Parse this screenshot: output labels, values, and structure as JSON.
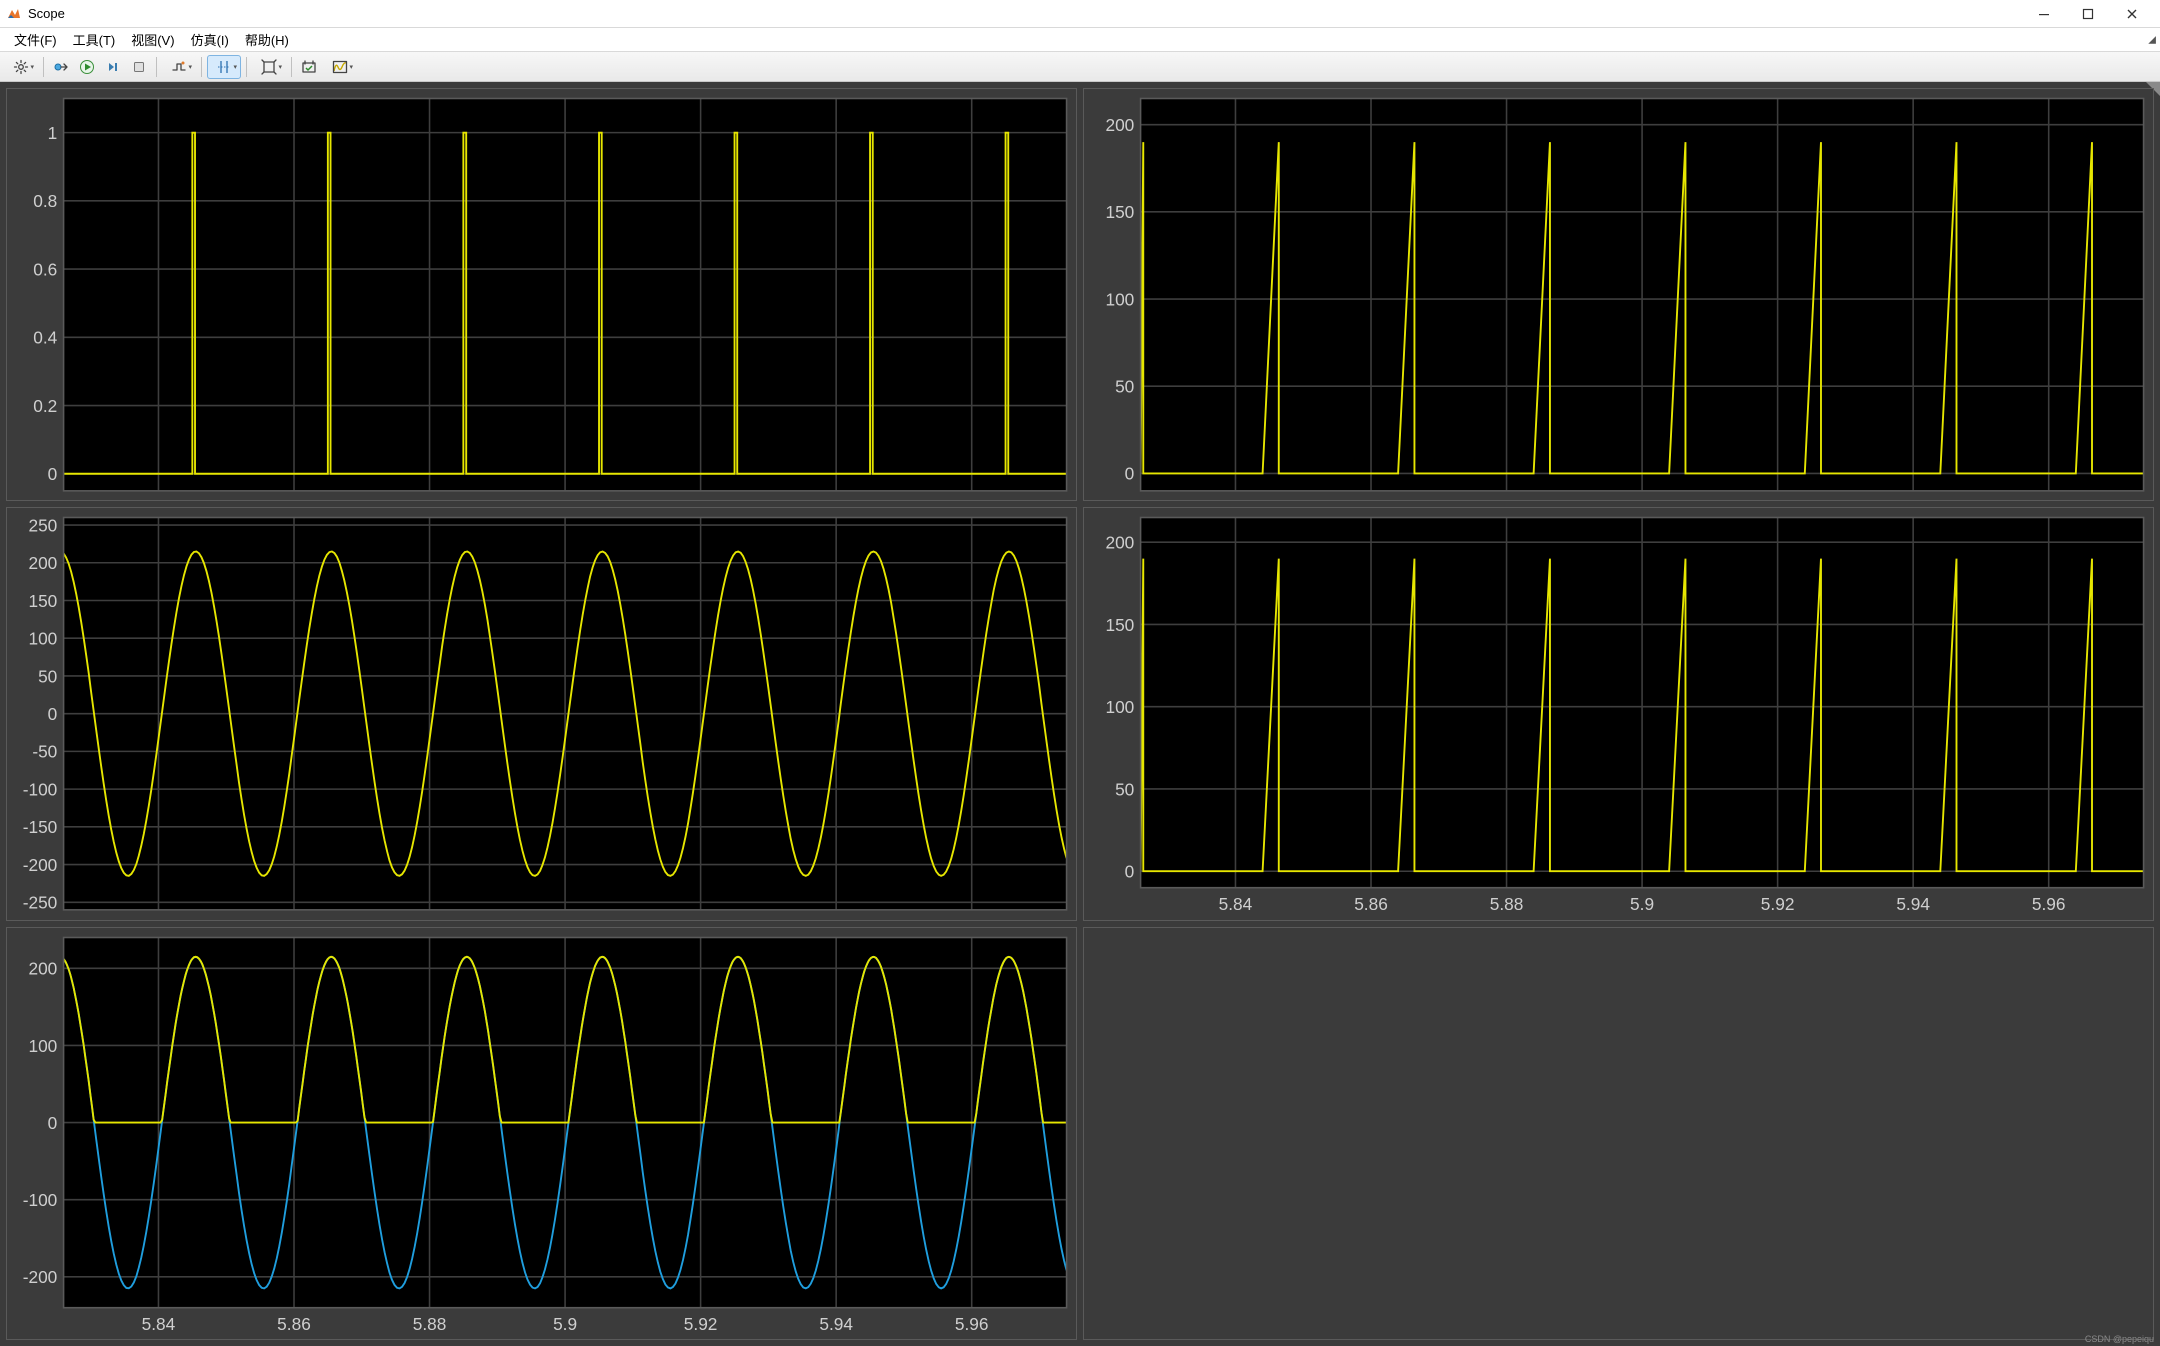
{
  "window": {
    "title": "Scope",
    "icon_name": "matlab-membrane-icon"
  },
  "menus": [
    {
      "label": "文件(F)"
    },
    {
      "label": "工具(T)"
    },
    {
      "label": "视图(V)"
    },
    {
      "label": "仿真(I)"
    },
    {
      "label": "帮助(H)"
    }
  ],
  "toolbar": [
    {
      "name": "configure",
      "title": "Configuration Properties",
      "icon": "gear",
      "dropdown": true
    },
    {
      "sep": true
    },
    {
      "name": "open-model",
      "title": "Highlight Block",
      "icon": "open-doc",
      "dropdown": false
    },
    {
      "name": "run",
      "title": "Run",
      "icon": "play-green",
      "dropdown": false
    },
    {
      "name": "step-forward",
      "title": "Step Forward",
      "icon": "step-fwd",
      "dropdown": false
    },
    {
      "name": "stop",
      "title": "Stop",
      "icon": "stop",
      "dropdown": false
    },
    {
      "sep": true
    },
    {
      "name": "triggers",
      "title": "Triggers",
      "icon": "trigger",
      "dropdown": true
    },
    {
      "sep": true
    },
    {
      "name": "cursor-measure",
      "title": "Cursor Measurements",
      "icon": "cursor",
      "dropdown": true,
      "active": true
    },
    {
      "sep": true
    },
    {
      "name": "zoom-xy",
      "title": "Zoom",
      "icon": "autoscale",
      "dropdown": true
    },
    {
      "sep": true
    },
    {
      "name": "time-settings",
      "title": "Time Settings",
      "icon": "time-set",
      "dropdown": false
    },
    {
      "name": "signals-view",
      "title": "View Signals",
      "icon": "signals",
      "dropdown": true
    }
  ],
  "axes_common": {
    "background_color": "#000000",
    "grid_color": "#3e3e3e",
    "tick_color": "#cfcfcf",
    "tick_fontsize": 11,
    "x": {
      "lim": [
        5.826,
        5.974
      ],
      "ticks": [
        5.84,
        5.86,
        5.88,
        5.9,
        5.92,
        5.94,
        5.96
      ],
      "tick_labels": [
        "5.84",
        "5.86",
        "5.88",
        "5.9",
        "5.92",
        "5.94",
        "5.96"
      ]
    },
    "series_colors": {
      "yellow": "#e6e600",
      "blue": "#1f9ede"
    },
    "line_width": 1.2
  },
  "panels": [
    {
      "id": "p1",
      "row": 1,
      "col": 1,
      "show_x_ticklabels": false,
      "y": {
        "lim": [
          -0.05,
          1.1
        ],
        "ticks": [
          0,
          0.2,
          0.4,
          0.6,
          0.8,
          1
        ],
        "tick_labels": [
          "0",
          "0.2",
          "0.4",
          "0.6",
          "0.8",
          "1"
        ]
      },
      "series": [
        {
          "type": "pulses",
          "color": "#e6e600",
          "period": 0.02,
          "pulse_width_frac": 0.02,
          "phase": 0.005,
          "baseline": 0,
          "amplitude": 1
        }
      ]
    },
    {
      "id": "p2",
      "row": 1,
      "col": 2,
      "show_x_ticklabels": false,
      "y": {
        "lim": [
          -10,
          215
        ],
        "ticks": [
          0,
          50,
          100,
          150,
          200
        ],
        "tick_labels": [
          "0",
          "50",
          "100",
          "150",
          "200"
        ]
      },
      "series": [
        {
          "type": "saw",
          "color": "#e6e600",
          "period": 0.02,
          "rise_frac": 0.12,
          "phase": 0.004,
          "baseline": 0,
          "amplitude": 190
        }
      ]
    },
    {
      "id": "p3",
      "row": 2,
      "col": 1,
      "show_x_ticklabels": false,
      "y": {
        "lim": [
          -260,
          260
        ],
        "ticks": [
          -250,
          -200,
          -150,
          -100,
          -50,
          0,
          50,
          100,
          150,
          200,
          250
        ],
        "tick_labels": [
          "-250",
          "-200",
          "-150",
          "-100",
          "-50",
          "0",
          "50",
          "100",
          "150",
          "200",
          "250"
        ]
      },
      "series": [
        {
          "type": "sine",
          "color": "#e6e600",
          "period": 0.02,
          "phase": 0.0005,
          "amplitude": 215,
          "offset": 0
        }
      ]
    },
    {
      "id": "p4",
      "row": 2,
      "col": 2,
      "show_x_ticklabels": true,
      "y": {
        "lim": [
          -10,
          215
        ],
        "ticks": [
          0,
          50,
          100,
          150,
          200
        ],
        "tick_labels": [
          "0",
          "50",
          "100",
          "150",
          "200"
        ]
      },
      "series": [
        {
          "type": "saw",
          "color": "#e6e600",
          "period": 0.02,
          "rise_frac": 0.12,
          "phase": 0.004,
          "baseline": 0,
          "amplitude": 190
        }
      ]
    },
    {
      "id": "p5",
      "row": 3,
      "col": 1,
      "show_x_ticklabels": true,
      "y": {
        "lim": [
          -240,
          240
        ],
        "ticks": [
          -200,
          -100,
          0,
          100,
          200
        ],
        "tick_labels": [
          "-200",
          "-100",
          "0",
          "100",
          "200"
        ]
      },
      "series": [
        {
          "type": "sine",
          "color": "#1f9ede",
          "period": 0.02,
          "phase": 0.0005,
          "amplitude": 215,
          "offset": 0
        },
        {
          "type": "half-sine-top",
          "color": "#e6e600",
          "period": 0.02,
          "phase": 0.0005,
          "amplitude": 215,
          "baseline": 0
        }
      ]
    },
    {
      "id": "p6",
      "row": 3,
      "col": 2,
      "empty": true
    }
  ],
  "footer": {
    "watermark": "CSDN @pepeiqu"
  }
}
